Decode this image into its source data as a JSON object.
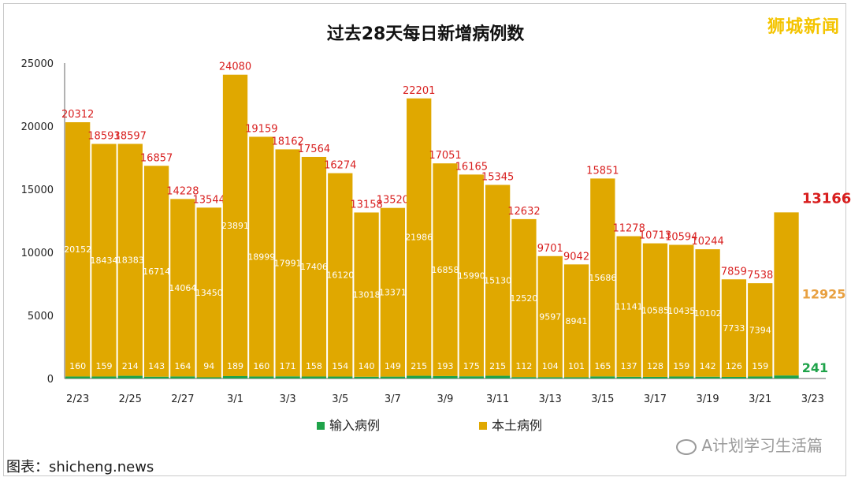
{
  "brand": "狮城新闻",
  "watermark": "A计划学习生活篇",
  "source": "图表：shicheng.news",
  "chart_data": {
    "type": "bar",
    "stacked": true,
    "title": "过去28天每日新增病例数",
    "categories": [
      "2/23",
      "2/24",
      "2/25",
      "2/26",
      "2/27",
      "2/28",
      "3/1",
      "3/2",
      "3/3",
      "3/4",
      "3/5",
      "3/6",
      "3/7",
      "3/8",
      "3/9",
      "3/10",
      "3/11",
      "3/12",
      "3/13",
      "3/14",
      "3/15",
      "3/16",
      "3/17",
      "3/18",
      "3/19",
      "3/20",
      "3/21",
      "3/22",
      "3/23"
    ],
    "tick_labels": [
      "2/23",
      "2/25",
      "2/27",
      "3/1",
      "3/3",
      "3/5",
      "3/7",
      "3/9",
      "3/11",
      "3/13",
      "3/15",
      "3/17",
      "3/19",
      "3/21",
      "3/23"
    ],
    "series": [
      {
        "name": "输入病例",
        "color": "#1fa34a",
        "values": [
          160,
          159,
          214,
          143,
          164,
          94,
          189,
          160,
          171,
          158,
          154,
          140,
          149,
          215,
          193,
          175,
          215,
          112,
          104,
          101,
          165,
          137,
          128,
          159,
          142,
          126,
          159,
          241,
          null
        ]
      },
      {
        "name": "本土病例",
        "color": "#e0a800",
        "values": [
          20152,
          18434,
          18383,
          16714,
          14064,
          13450,
          23891,
          18999,
          17991,
          17406,
          16120,
          13018,
          13371,
          21986,
          16858,
          15990,
          15130,
          12520,
          9597,
          8941,
          15686,
          11141,
          10585,
          10435,
          10102,
          7733,
          7394,
          12925,
          null
        ]
      }
    ],
    "totals": [
      20312,
      18593,
      18597,
      16857,
      14228,
      13544,
      24080,
      19159,
      18162,
      17564,
      16274,
      13158,
      13520,
      22201,
      17051,
      16165,
      15345,
      12632,
      9701,
      9042,
      15851,
      11278,
      10713,
      10594,
      10244,
      7859,
      7538,
      13166,
      null
    ],
    "ylim": [
      0,
      25000
    ],
    "yticks": [
      0,
      5000,
      10000,
      15000,
      20000,
      25000
    ],
    "legend_position": "bottom-center",
    "grid": false
  }
}
